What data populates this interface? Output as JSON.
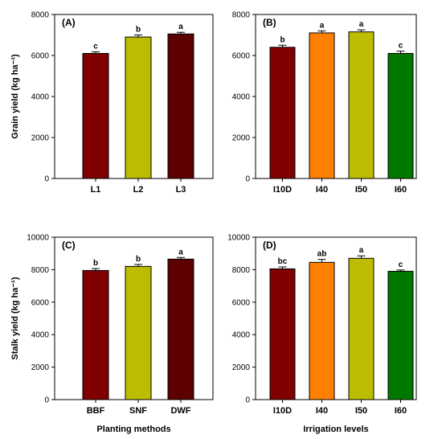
{
  "chart_data": [
    {
      "type": "bar",
      "panel_label": "(A)",
      "categories": [
        "L1",
        "L2",
        "L3"
      ],
      "values": [
        6100,
        6900,
        7050
      ],
      "errors": [
        80,
        100,
        80
      ],
      "significance": [
        "c",
        "b",
        "a"
      ],
      "colors": [
        "#800000",
        "#bcbc00",
        "#5c0000"
      ],
      "ylim": [
        0,
        8000
      ],
      "yticks": [
        "0",
        "2000",
        "4000",
        "6000",
        "8000"
      ],
      "ylabel": "Grain yield (kg ha⁻¹)",
      "xlabel": ""
    },
    {
      "type": "bar",
      "panel_label": "(B)",
      "categories": [
        "I10D",
        "I40",
        "I50",
        "I60"
      ],
      "values": [
        6400,
        7100,
        7150,
        6100
      ],
      "errors": [
        100,
        100,
        100,
        110
      ],
      "significance": [
        "b",
        "a",
        "a",
        "c"
      ],
      "colors": [
        "#800000",
        "#ff8000",
        "#bcbc00",
        "#007800"
      ],
      "ylim": [
        0,
        8000
      ],
      "yticks": [
        "0",
        "2000",
        "4000",
        "6000",
        "8000"
      ],
      "ylabel": "",
      "xlabel": ""
    },
    {
      "type": "bar",
      "panel_label": "(C)",
      "categories": [
        "BBF",
        "SNF",
        "DWF"
      ],
      "values": [
        7950,
        8200,
        8650
      ],
      "errors": [
        120,
        120,
        100
      ],
      "significance": [
        "b",
        "b",
        "a"
      ],
      "colors": [
        "#800000",
        "#bcbc00",
        "#5c0000"
      ],
      "ylim": [
        0,
        10000
      ],
      "yticks": [
        "0",
        "2000",
        "4000",
        "6000",
        "8000",
        "10000"
      ],
      "ylabel": "Stalk yield (kg ha⁻¹)",
      "xlabel": "Planting methods"
    },
    {
      "type": "bar",
      "panel_label": "(D)",
      "categories": [
        "I10D",
        "I40",
        "I50",
        "I60"
      ],
      "values": [
        8050,
        8450,
        8700,
        7900
      ],
      "errors": [
        120,
        180,
        150,
        80
      ],
      "significance": [
        "bc",
        "ab",
        "a",
        "c"
      ],
      "colors": [
        "#800000",
        "#ff8000",
        "#bcbc00",
        "#007800"
      ],
      "ylim": [
        0,
        10000
      ],
      "yticks": [
        "0",
        "2000",
        "4000",
        "6000",
        "8000",
        "10000"
      ],
      "ylabel": "",
      "xlabel": "Irrigation levels"
    }
  ]
}
